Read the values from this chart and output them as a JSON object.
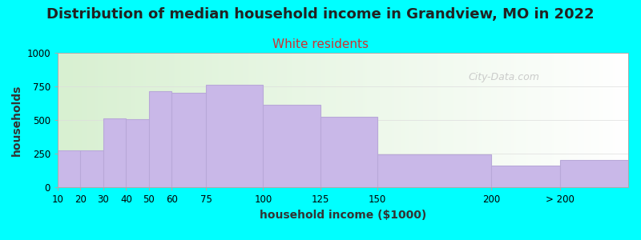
{
  "title": "Distribution of median household income in Grandview, MO in 2022",
  "subtitle": "White residents",
  "xlabel": "household income ($1000)",
  "ylabel": "households",
  "bin_edges": [
    10,
    20,
    30,
    40,
    50,
    60,
    75,
    100,
    125,
    150,
    200,
    230,
    260
  ],
  "bin_labels": [
    "10",
    "20",
    "30",
    "40",
    "50",
    "60",
    "75",
    "100",
    "125",
    "150",
    "200",
    "> 200"
  ],
  "bar_values": [
    275,
    275,
    510,
    505,
    715,
    705,
    760,
    615,
    525,
    245,
    160,
    200
  ],
  "bar_color": "#c9b8e8",
  "bar_edgecolor": "#b8a8d8",
  "background_color": "#00FFFF",
  "ylim": [
    0,
    1000
  ],
  "yticks": [
    0,
    250,
    500,
    750,
    1000
  ],
  "title_fontsize": 13,
  "subtitle_fontsize": 11,
  "subtitle_color": "#cc3333",
  "axis_label_fontsize": 10,
  "watermark": "City-Data.com"
}
